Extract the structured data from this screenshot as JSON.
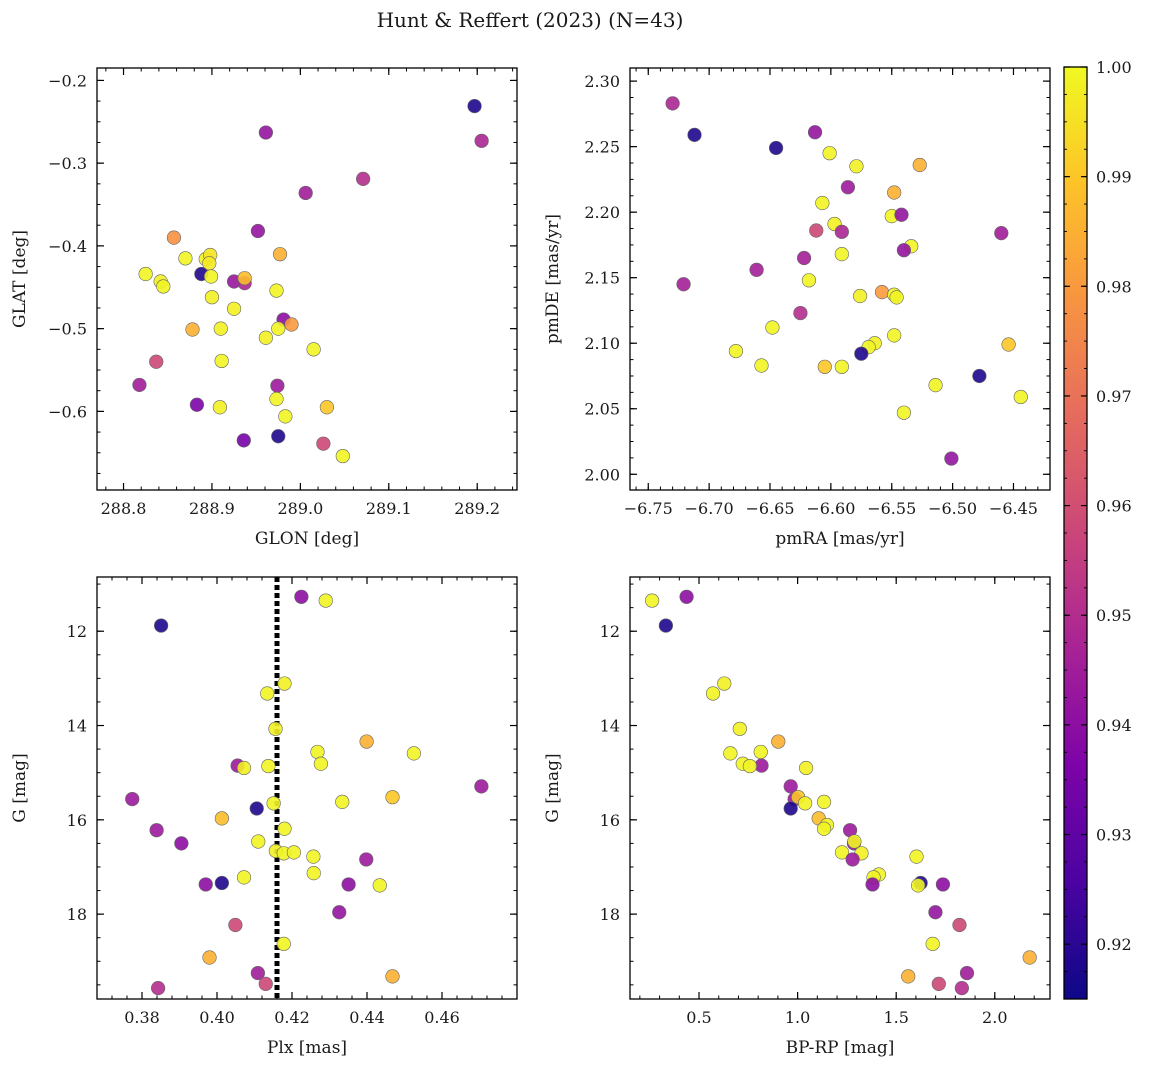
{
  "figure": {
    "title": "Hunt & Reffert (2023) (N=43)"
  },
  "colorbar": {
    "min": 0.915,
    "max": 1.0,
    "ticks": [
      0.92,
      0.93,
      0.94,
      0.95,
      0.96,
      0.97,
      0.98,
      0.99,
      1.0
    ],
    "tick_labels": [
      "0.92",
      "0.93",
      "0.94",
      "0.95",
      "0.96",
      "0.97",
      "0.98",
      "0.99",
      "1.00"
    ],
    "colormap": "plasma"
  },
  "chart_data": [
    {
      "type": "scatter",
      "panel": "top-left",
      "xlabel": "GLON [deg]",
      "ylabel": "GLAT [deg]",
      "xlim": [
        288.77,
        289.245
      ],
      "ylim": [
        -0.695,
        -0.185
      ],
      "xticks": [
        288.8,
        288.9,
        289.0,
        289.1,
        289.2
      ],
      "xtick_labels": [
        "288.8",
        "288.9",
        "289.0",
        "289.1",
        "289.2"
      ],
      "yticks": [
        -0.6,
        -0.5,
        -0.4,
        -0.3,
        -0.2
      ],
      "ytick_labels": [
        "−0.6",
        "−0.5",
        "−0.4",
        "−0.3",
        "−0.2"
      ],
      "points": [
        {
          "x": 289.197,
          "y": -0.231,
          "c": 0.918
        },
        {
          "x": 289.205,
          "y": -0.273,
          "c": 0.948
        },
        {
          "x": 288.961,
          "y": -0.263,
          "c": 0.942
        },
        {
          "x": 289.071,
          "y": -0.319,
          "c": 0.95
        },
        {
          "x": 289.006,
          "y": -0.336,
          "c": 0.945
        },
        {
          "x": 288.952,
          "y": -0.382,
          "c": 0.942
        },
        {
          "x": 288.857,
          "y": -0.39,
          "c": 0.978
        },
        {
          "x": 288.977,
          "y": -0.41,
          "c": 0.985
        },
        {
          "x": 288.87,
          "y": -0.415,
          "c": 0.999
        },
        {
          "x": 288.893,
          "y": -0.416,
          "c": 0.998
        },
        {
          "x": 288.898,
          "y": -0.411,
          "c": 0.996
        },
        {
          "x": 288.897,
          "y": -0.421,
          "c": 0.997
        },
        {
          "x": 288.825,
          "y": -0.434,
          "c": 0.999
        },
        {
          "x": 288.888,
          "y": -0.434,
          "c": 0.918
        },
        {
          "x": 288.899,
          "y": -0.437,
          "c": 0.999
        },
        {
          "x": 288.842,
          "y": -0.443,
          "c": 0.998
        },
        {
          "x": 288.845,
          "y": -0.449,
          "c": 0.999
        },
        {
          "x": 288.925,
          "y": -0.443,
          "c": 0.943
        },
        {
          "x": 288.937,
          "y": -0.445,
          "c": 0.948
        },
        {
          "x": 288.937,
          "y": -0.439,
          "c": 0.988
        },
        {
          "x": 288.973,
          "y": -0.454,
          "c": 0.999
        },
        {
          "x": 288.9,
          "y": -0.462,
          "c": 0.998
        },
        {
          "x": 288.925,
          "y": -0.476,
          "c": 0.998
        },
        {
          "x": 288.981,
          "y": -0.489,
          "c": 0.94
        },
        {
          "x": 288.99,
          "y": -0.495,
          "c": 0.98
        },
        {
          "x": 288.878,
          "y": -0.501,
          "c": 0.985
        },
        {
          "x": 288.91,
          "y": -0.5,
          "c": 0.998
        },
        {
          "x": 288.975,
          "y": -0.5,
          "c": 0.999
        },
        {
          "x": 288.961,
          "y": -0.511,
          "c": 0.998
        },
        {
          "x": 289.015,
          "y": -0.525,
          "c": 0.999
        },
        {
          "x": 288.837,
          "y": -0.54,
          "c": 0.958
        },
        {
          "x": 288.911,
          "y": -0.539,
          "c": 0.999
        },
        {
          "x": 288.818,
          "y": -0.568,
          "c": 0.945
        },
        {
          "x": 288.974,
          "y": -0.569,
          "c": 0.944
        },
        {
          "x": 288.973,
          "y": -0.585,
          "c": 0.999
        },
        {
          "x": 288.883,
          "y": -0.592,
          "c": 0.936
        },
        {
          "x": 288.909,
          "y": -0.595,
          "c": 0.998
        },
        {
          "x": 289.03,
          "y": -0.595,
          "c": 0.99
        },
        {
          "x": 288.983,
          "y": -0.606,
          "c": 0.999
        },
        {
          "x": 288.975,
          "y": -0.63,
          "c": 0.918
        },
        {
          "x": 288.936,
          "y": -0.635,
          "c": 0.935
        },
        {
          "x": 289.026,
          "y": -0.639,
          "c": 0.958
        },
        {
          "x": 289.048,
          "y": -0.654,
          "c": 0.999
        }
      ]
    },
    {
      "type": "scatter",
      "panel": "top-right",
      "xlabel": "pmRA [mas/yr]",
      "ylabel": "pmDE [mas/yr]",
      "xlim": [
        -6.765,
        -6.42
      ],
      "ylim": [
        1.988,
        2.31
      ],
      "xticks": [
        -6.75,
        -6.7,
        -6.65,
        -6.6,
        -6.55,
        -6.5,
        -6.45
      ],
      "xtick_labels": [
        "−6.75",
        "−6.70",
        "−6.65",
        "−6.60",
        "−6.55",
        "−6.50",
        "−6.45"
      ],
      "yticks": [
        2.0,
        2.05,
        2.1,
        2.15,
        2.2,
        2.25,
        2.3
      ],
      "ytick_labels": [
        "2.00",
        "2.05",
        "2.10",
        "2.15",
        "2.20",
        "2.25",
        "2.30"
      ],
      "points": [
        {
          "x": -6.73,
          "y": 2.283,
          "c": 0.948
        },
        {
          "x": -6.712,
          "y": 2.259,
          "c": 0.918
        },
        {
          "x": -6.645,
          "y": 2.249,
          "c": 0.918
        },
        {
          "x": -6.613,
          "y": 2.261,
          "c": 0.942
        },
        {
          "x": -6.601,
          "y": 2.245,
          "c": 0.999
        },
        {
          "x": -6.579,
          "y": 2.235,
          "c": 0.998
        },
        {
          "x": -6.527,
          "y": 2.236,
          "c": 0.985
        },
        {
          "x": -6.586,
          "y": 2.219,
          "c": 0.944
        },
        {
          "x": -6.548,
          "y": 2.215,
          "c": 0.985
        },
        {
          "x": -6.607,
          "y": 2.207,
          "c": 0.999
        },
        {
          "x": -6.55,
          "y": 2.197,
          "c": 0.999
        },
        {
          "x": -6.542,
          "y": 2.198,
          "c": 0.942
        },
        {
          "x": -6.597,
          "y": 2.191,
          "c": 0.998
        },
        {
          "x": -6.612,
          "y": 2.186,
          "c": 0.958
        },
        {
          "x": -6.591,
          "y": 2.185,
          "c": 0.948
        },
        {
          "x": -6.46,
          "y": 2.184,
          "c": 0.945
        },
        {
          "x": -6.534,
          "y": 2.174,
          "c": 0.999
        },
        {
          "x": -6.54,
          "y": 2.171,
          "c": 0.942
        },
        {
          "x": -6.591,
          "y": 2.168,
          "c": 0.999
        },
        {
          "x": -6.622,
          "y": 2.165,
          "c": 0.946
        },
        {
          "x": -6.661,
          "y": 2.156,
          "c": 0.946
        },
        {
          "x": -6.721,
          "y": 2.145,
          "c": 0.946
        },
        {
          "x": -6.618,
          "y": 2.148,
          "c": 0.999
        },
        {
          "x": -6.558,
          "y": 2.139,
          "c": 0.98
        },
        {
          "x": -6.576,
          "y": 2.136,
          "c": 0.998
        },
        {
          "x": -6.548,
          "y": 2.137,
          "c": 0.999
        },
        {
          "x": -6.546,
          "y": 2.135,
          "c": 0.999
        },
        {
          "x": -6.625,
          "y": 2.123,
          "c": 0.95
        },
        {
          "x": -6.648,
          "y": 2.112,
          "c": 0.999
        },
        {
          "x": -6.548,
          "y": 2.106,
          "c": 0.999
        },
        {
          "x": -6.564,
          "y": 2.1,
          "c": 0.998
        },
        {
          "x": -6.569,
          "y": 2.097,
          "c": 0.999
        },
        {
          "x": -6.575,
          "y": 2.092,
          "c": 0.918
        },
        {
          "x": -6.454,
          "y": 2.099,
          "c": 0.99
        },
        {
          "x": -6.678,
          "y": 2.094,
          "c": 0.999
        },
        {
          "x": -6.657,
          "y": 2.083,
          "c": 0.999
        },
        {
          "x": -6.605,
          "y": 2.082,
          "c": 0.99
        },
        {
          "x": -6.591,
          "y": 2.082,
          "c": 0.999
        },
        {
          "x": -6.478,
          "y": 2.075,
          "c": 0.918
        },
        {
          "x": -6.514,
          "y": 2.068,
          "c": 0.999
        },
        {
          "x": -6.444,
          "y": 2.059,
          "c": 0.999
        },
        {
          "x": -6.54,
          "y": 2.047,
          "c": 0.999
        },
        {
          "x": -6.501,
          "y": 2.012,
          "c": 0.942
        }
      ]
    },
    {
      "type": "scatter",
      "panel": "bottom-left",
      "xlabel": "Plx [mas]",
      "ylabel": "G [mag]",
      "xlim": [
        0.368,
        0.48
      ],
      "ylim": [
        19.8,
        10.85
      ],
      "y_inverted": true,
      "reference_line": {
        "x": 0.416,
        "style": "dotted"
      },
      "xticks": [
        0.38,
        0.4,
        0.42,
        0.44,
        0.46
      ],
      "xtick_labels": [
        "0.38",
        "0.40",
        "0.42",
        "0.44",
        "0.46"
      ],
      "yticks": [
        12,
        14,
        16,
        18
      ],
      "ytick_labels": [
        "12",
        "14",
        "16",
        "18"
      ],
      "points": [
        {
          "x": 0.4225,
          "y": 11.27,
          "c": 0.94
        },
        {
          "x": 0.429,
          "y": 11.35,
          "c": 0.999
        },
        {
          "x": 0.3851,
          "y": 11.88,
          "c": 0.918
        },
        {
          "x": 0.418,
          "y": 13.11,
          "c": 0.998
        },
        {
          "x": 0.4134,
          "y": 13.32,
          "c": 0.999
        },
        {
          "x": 0.4156,
          "y": 14.07,
          "c": 0.998
        },
        {
          "x": 0.4399,
          "y": 14.34,
          "c": 0.985
        },
        {
          "x": 0.4268,
          "y": 14.56,
          "c": 0.999
        },
        {
          "x": 0.4525,
          "y": 14.59,
          "c": 0.999
        },
        {
          "x": 0.4277,
          "y": 14.81,
          "c": 0.999
        },
        {
          "x": 0.4055,
          "y": 14.85,
          "c": 0.944
        },
        {
          "x": 0.4137,
          "y": 14.86,
          "c": 0.999
        },
        {
          "x": 0.4072,
          "y": 14.9,
          "c": 0.998
        },
        {
          "x": 0.4705,
          "y": 15.29,
          "c": 0.944
        },
        {
          "x": 0.3774,
          "y": 15.56,
          "c": 0.944
        },
        {
          "x": 0.4468,
          "y": 15.52,
          "c": 0.99
        },
        {
          "x": 0.4334,
          "y": 15.62,
          "c": 0.999
        },
        {
          "x": 0.4151,
          "y": 15.65,
          "c": 0.999
        },
        {
          "x": 0.4106,
          "y": 15.76,
          "c": 0.918
        },
        {
          "x": 0.4013,
          "y": 15.97,
          "c": 0.988
        },
        {
          "x": 0.418,
          "y": 16.19,
          "c": 0.999
        },
        {
          "x": 0.3839,
          "y": 16.22,
          "c": 0.944
        },
        {
          "x": 0.411,
          "y": 16.46,
          "c": 0.999
        },
        {
          "x": 0.3905,
          "y": 16.5,
          "c": 0.94
        },
        {
          "x": 0.4157,
          "y": 16.66,
          "c": 0.998
        },
        {
          "x": 0.4178,
          "y": 16.71,
          "c": 0.999
        },
        {
          "x": 0.4205,
          "y": 16.69,
          "c": 0.999
        },
        {
          "x": 0.4257,
          "y": 16.78,
          "c": 0.999
        },
        {
          "x": 0.4398,
          "y": 16.84,
          "c": 0.944
        },
        {
          "x": 0.4258,
          "y": 17.13,
          "c": 0.999
        },
        {
          "x": 0.4072,
          "y": 17.22,
          "c": 0.999
        },
        {
          "x": 0.4013,
          "y": 17.34,
          "c": 0.918
        },
        {
          "x": 0.397,
          "y": 17.37,
          "c": 0.94
        },
        {
          "x": 0.4351,
          "y": 17.37,
          "c": 0.94
        },
        {
          "x": 0.4434,
          "y": 17.39,
          "c": 0.999
        },
        {
          "x": 0.4326,
          "y": 17.96,
          "c": 0.942
        },
        {
          "x": 0.4049,
          "y": 18.23,
          "c": 0.958
        },
        {
          "x": 0.4178,
          "y": 18.63,
          "c": 0.999
        },
        {
          "x": 0.398,
          "y": 18.92,
          "c": 0.985
        },
        {
          "x": 0.4109,
          "y": 19.25,
          "c": 0.945
        },
        {
          "x": 0.4468,
          "y": 19.32,
          "c": 0.985
        },
        {
          "x": 0.413,
          "y": 19.48,
          "c": 0.958
        },
        {
          "x": 0.3843,
          "y": 19.57,
          "c": 0.95
        }
      ]
    },
    {
      "type": "scatter",
      "panel": "bottom-right",
      "xlabel": "BP-RP [mag]",
      "ylabel": "G [mag]",
      "xlim": [
        0.15,
        2.28
      ],
      "ylim": [
        19.8,
        10.85
      ],
      "y_inverted": true,
      "xticks": [
        0.5,
        1.0,
        1.5,
        2.0
      ],
      "xtick_labels": [
        "0.5",
        "1.0",
        "1.5",
        "2.0"
      ],
      "yticks": [
        12,
        14,
        16,
        18
      ],
      "ytick_labels": [
        "12",
        "14",
        "16",
        "18"
      ],
      "points": [
        {
          "x": 0.262,
          "y": 11.35,
          "c": 0.999
        },
        {
          "x": 0.437,
          "y": 11.27,
          "c": 0.94
        },
        {
          "x": 0.332,
          "y": 11.88,
          "c": 0.918
        },
        {
          "x": 0.628,
          "y": 13.11,
          "c": 0.998
        },
        {
          "x": 0.571,
          "y": 13.32,
          "c": 0.999
        },
        {
          "x": 0.707,
          "y": 14.07,
          "c": 0.998
        },
        {
          "x": 0.902,
          "y": 14.34,
          "c": 0.985
        },
        {
          "x": 0.813,
          "y": 14.56,
          "c": 0.999
        },
        {
          "x": 0.659,
          "y": 14.59,
          "c": 0.999
        },
        {
          "x": 0.722,
          "y": 14.81,
          "c": 0.999
        },
        {
          "x": 0.817,
          "y": 14.85,
          "c": 0.944
        },
        {
          "x": 0.758,
          "y": 14.86,
          "c": 0.999
        },
        {
          "x": 1.043,
          "y": 14.9,
          "c": 0.998
        },
        {
          "x": 0.965,
          "y": 15.29,
          "c": 0.944
        },
        {
          "x": 0.985,
          "y": 15.56,
          "c": 0.944
        },
        {
          "x": 1.003,
          "y": 15.52,
          "c": 0.99
        },
        {
          "x": 1.134,
          "y": 15.62,
          "c": 0.999
        },
        {
          "x": 1.038,
          "y": 15.65,
          "c": 0.999
        },
        {
          "x": 0.965,
          "y": 15.76,
          "c": 0.918
        },
        {
          "x": 1.107,
          "y": 15.97,
          "c": 0.988
        },
        {
          "x": 1.149,
          "y": 16.11,
          "c": 0.999
        },
        {
          "x": 1.266,
          "y": 16.22,
          "c": 0.944
        },
        {
          "x": 1.134,
          "y": 16.19,
          "c": 0.999
        },
        {
          "x": 1.286,
          "y": 16.5,
          "c": 0.94
        },
        {
          "x": 1.288,
          "y": 16.46,
          "c": 0.999
        },
        {
          "x": 1.324,
          "y": 16.71,
          "c": 0.998
        },
        {
          "x": 1.225,
          "y": 16.69,
          "c": 0.999
        },
        {
          "x": 1.603,
          "y": 16.78,
          "c": 0.999
        },
        {
          "x": 1.279,
          "y": 16.84,
          "c": 0.944
        },
        {
          "x": 1.412,
          "y": 17.16,
          "c": 0.999
        },
        {
          "x": 1.385,
          "y": 17.22,
          "c": 0.999
        },
        {
          "x": 1.624,
          "y": 17.34,
          "c": 0.918
        },
        {
          "x": 1.611,
          "y": 17.39,
          "c": 0.999
        },
        {
          "x": 1.38,
          "y": 17.37,
          "c": 0.94
        },
        {
          "x": 1.737,
          "y": 17.37,
          "c": 0.94
        },
        {
          "x": 1.699,
          "y": 17.96,
          "c": 0.942
        },
        {
          "x": 1.821,
          "y": 18.23,
          "c": 0.958
        },
        {
          "x": 1.685,
          "y": 18.63,
          "c": 0.999
        },
        {
          "x": 2.177,
          "y": 18.92,
          "c": 0.985
        },
        {
          "x": 1.859,
          "y": 19.25,
          "c": 0.945
        },
        {
          "x": 1.561,
          "y": 19.32,
          "c": 0.985
        },
        {
          "x": 1.716,
          "y": 19.48,
          "c": 0.958
        },
        {
          "x": 1.833,
          "y": 19.57,
          "c": 0.95
        }
      ]
    }
  ]
}
